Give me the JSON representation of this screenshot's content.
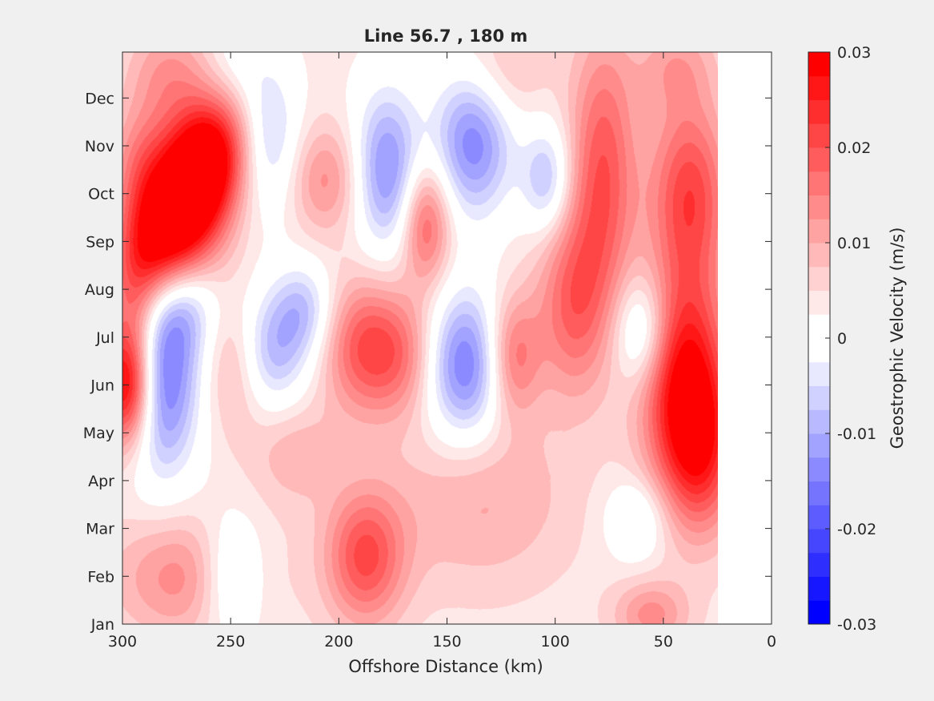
{
  "chart_data": {
    "type": "heatmap",
    "subtype": "filled-contour",
    "title": "Line 56.7 , 180 m",
    "xlabel": "Offshore Distance (km)",
    "ylabel": "",
    "xlim": [
      300,
      0
    ],
    "x_reversed": true,
    "x_ticks": [
      300,
      250,
      200,
      150,
      100,
      50,
      0
    ],
    "y_ticks": [
      "Jan",
      "Feb",
      "Mar",
      "Apr",
      "May",
      "Jun",
      "Jul",
      "Aug",
      "Sep",
      "Oct",
      "Nov",
      "Dec"
    ],
    "data_extent_km": [
      300,
      25
    ],
    "colorbar": {
      "label": "Geostrophic Velocity (m/s)",
      "min": -0.03,
      "max": 0.03,
      "levels": 24,
      "tick_values": [
        0.03,
        0.02,
        0.01,
        0,
        -0.01,
        -0.02,
        -0.03
      ],
      "tick_labels": [
        "0.03",
        "0.02",
        "0.01",
        "0",
        "-0.01",
        "-0.02",
        "-0.03"
      ],
      "colors": {
        "positive": "#ff0000",
        "zero": "#ffffff",
        "negative": "#0000ff"
      }
    },
    "features": [
      {
        "x": 298,
        "month": 5.0,
        "value": 0.03,
        "sx": 9,
        "sy": 0.9
      },
      {
        "x": 294,
        "month": 7.0,
        "value": 0.012,
        "sx": 9,
        "sy": 1.0
      },
      {
        "x": 292,
        "month": 9.6,
        "value": 0.009,
        "sx": 10,
        "sy": 0.9
      },
      {
        "x": 282,
        "month": 5.1,
        "value": -0.021,
        "sx": 12,
        "sy": 1.4
      },
      {
        "x": 272,
        "month": 6.7,
        "value": -0.01,
        "sx": 12,
        "sy": 0.8
      },
      {
        "x": 283,
        "month": 7.9,
        "value": 0.018,
        "sx": 12,
        "sy": 0.9
      },
      {
        "x": 272,
        "month": 8.7,
        "value": 0.021,
        "sx": 13,
        "sy": 1.0
      },
      {
        "x": 264,
        "month": 9.5,
        "value": 0.021,
        "sx": 12,
        "sy": 0.9
      },
      {
        "x": 254,
        "month": 10.1,
        "value": 0.011,
        "sx": 11,
        "sy": 0.8
      },
      {
        "x": 278,
        "month": 11.5,
        "value": 0.009,
        "sx": 14,
        "sy": 0.8
      },
      {
        "x": 270,
        "month": 1.0,
        "value": 0.011,
        "sx": 24,
        "sy": 0.9
      },
      {
        "x": 250,
        "month": 1.0,
        "value": -0.012,
        "sx": 11,
        "sy": 0.9
      },
      {
        "x": 248,
        "month": 5.5,
        "value": 0.009,
        "sx": 10,
        "sy": 1.0
      },
      {
        "x": 248,
        "month": 11.8,
        "value": -0.004,
        "sx": 11,
        "sy": 0.6
      },
      {
        "x": 232,
        "month": 10.2,
        "value": -0.01,
        "sx": 10,
        "sy": 1.1
      },
      {
        "x": 232,
        "month": 5.7,
        "value": -0.013,
        "sx": 13,
        "sy": 0.9
      },
      {
        "x": 216,
        "month": 6.6,
        "value": -0.01,
        "sx": 10,
        "sy": 0.7
      },
      {
        "x": 206,
        "month": 9.3,
        "value": 0.01,
        "sx": 12,
        "sy": 0.8
      },
      {
        "x": 221,
        "month": 3.6,
        "value": 0.006,
        "sx": 14,
        "sy": 0.8
      },
      {
        "x": 188,
        "month": 1.4,
        "value": 0.017,
        "sx": 13,
        "sy": 1.0
      },
      {
        "x": 188,
        "month": 5.8,
        "value": 0.016,
        "sx": 14,
        "sy": 1.0
      },
      {
        "x": 178,
        "month": 9.5,
        "value": -0.017,
        "sx": 11,
        "sy": 1.2
      },
      {
        "x": 168,
        "month": 5.6,
        "value": 0.009,
        "sx": 12,
        "sy": 0.9
      },
      {
        "x": 160,
        "month": 8.4,
        "value": 0.016,
        "sx": 8,
        "sy": 0.9
      },
      {
        "x": 142,
        "month": 5.4,
        "value": -0.02,
        "sx": 14,
        "sy": 1.1
      },
      {
        "x": 138,
        "month": 10.1,
        "value": -0.018,
        "sx": 13,
        "sy": 1.1
      },
      {
        "x": 120,
        "month": 5.6,
        "value": 0.015,
        "sx": 9,
        "sy": 0.9
      },
      {
        "x": 104,
        "month": 9.3,
        "value": -0.012,
        "sx": 8,
        "sy": 0.8
      },
      {
        "x": 125,
        "month": 11.5,
        "value": 0.006,
        "sx": 14,
        "sy": 0.8
      },
      {
        "x": 135,
        "month": 2.6,
        "value": 0.007,
        "sx": 30,
        "sy": 1.3
      },
      {
        "x": 92,
        "month": 6.7,
        "value": 0.014,
        "sx": 12,
        "sy": 1.4
      },
      {
        "x": 78,
        "month": 9.5,
        "value": 0.016,
        "sx": 11,
        "sy": 2.0
      },
      {
        "x": 60,
        "month": 6.1,
        "value": -0.012,
        "sx": 9,
        "sy": 0.8
      },
      {
        "x": 62,
        "month": 2.2,
        "value": -0.008,
        "sx": 10,
        "sy": 0.6
      },
      {
        "x": 40,
        "month": 5.0,
        "value": 0.026,
        "sx": 14,
        "sy": 1.6
      },
      {
        "x": 38,
        "month": 9.0,
        "value": 0.018,
        "sx": 13,
        "sy": 1.4
      },
      {
        "x": 32,
        "month": 3.5,
        "value": 0.013,
        "sx": 12,
        "sy": 1.2
      },
      {
        "x": 45,
        "month": 11.7,
        "value": 0.007,
        "sx": 13,
        "sy": 0.7
      },
      {
        "x": 56,
        "month": 0.2,
        "value": 0.01,
        "sx": 12,
        "sy": 0.5
      }
    ]
  }
}
